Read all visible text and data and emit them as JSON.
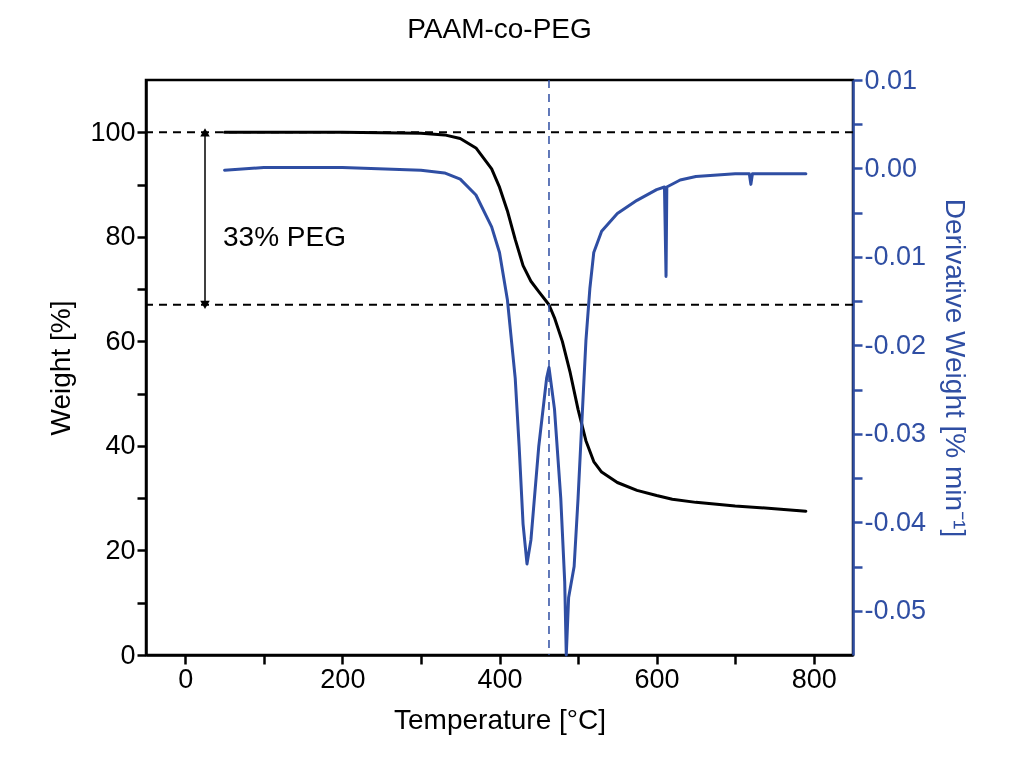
{
  "chart_data": {
    "type": "line",
    "title": "PAAM-co-PEG",
    "xlabel": "Temperature [°C]",
    "ylabel": "Weight [%]",
    "y2label": "Derivative Weight [% min⁻¹]",
    "xlim": [
      -50,
      850
    ],
    "xticks": [
      0,
      {
        "value": 100,
        "label": null
      },
      200,
      {
        "value": 300,
        "label": null
      },
      400,
      {
        "value": 500,
        "label": null
      },
      600,
      {
        "value": 700,
        "label": null
      },
      800
    ],
    "ylim": [
      0,
      110
    ],
    "yticks": [
      0,
      {
        "value": 10,
        "label": null
      },
      20,
      {
        "value": 30,
        "label": null
      },
      40,
      {
        "value": 50,
        "label": null
      },
      60,
      {
        "value": 70,
        "label": null
      },
      80,
      {
        "value": 90,
        "label": null
      },
      100
    ],
    "y2lim": [
      -0.055,
      0.01
    ],
    "y2ticks": [
      -0.05,
      {
        "value": -0.045,
        "label": null
      },
      -0.04,
      {
        "value": -0.035,
        "label": null
      },
      -0.03,
      {
        "value": -0.025,
        "label": null
      },
      -0.02,
      {
        "value": -0.015,
        "label": null
      },
      -0.01,
      {
        "value": -0.005,
        "label": null
      },
      {
        "value": 0,
        "label": "0.00"
      },
      {
        "value": 0.005,
        "label": null
      },
      0.01
    ],
    "grid": false,
    "marker": "none",
    "line_style": "solid",
    "series": [
      {
        "color": "#000000",
        "x": [
          50,
          100,
          200,
          300,
          330,
          350,
          370,
          390,
          400,
          410,
          420,
          430,
          440,
          450,
          463,
          470,
          480,
          490,
          500,
          510,
          520,
          530,
          550,
          575,
          600,
          620,
          650,
          700,
          750,
          790
        ],
        "values": [
          100,
          100,
          100,
          99.8,
          99.5,
          98.8,
          97,
          93,
          89.5,
          85,
          79.5,
          74.5,
          71.5,
          69.5,
          67,
          64.5,
          60,
          54,
          47,
          41,
          37,
          35,
          33,
          31.5,
          30.5,
          29.8,
          29.2,
          28.5,
          28,
          27.5
        ]
      },
      {
        "color": "#2f4ea3",
        "axis": "y2",
        "x": [
          50,
          100,
          200,
          300,
          330,
          350,
          370,
          390,
          400,
          410,
          420,
          425,
          430,
          435,
          440,
          450,
          460,
          463,
          470,
          478,
          483,
          485,
          488,
          495,
          500,
          505,
          510,
          515,
          520,
          530,
          550,
          575,
          600,
          610,
          612,
          613,
          630,
          650,
          700,
          718,
          720,
          722,
          750,
          790
        ],
        "values": [
          -0.0002,
          0.0001,
          0.0001,
          -0.0002,
          -0.0005,
          -0.0012,
          -0.003,
          -0.0066,
          -0.0095,
          -0.0148,
          -0.0237,
          -0.0314,
          -0.0402,
          -0.0447,
          -0.042,
          -0.0314,
          -0.0237,
          -0.0225,
          -0.0272,
          -0.0373,
          -0.0467,
          -0.055,
          -0.0485,
          -0.045,
          -0.0373,
          -0.0284,
          -0.0195,
          -0.0136,
          -0.0095,
          -0.0071,
          -0.0051,
          -0.0036,
          -0.0024,
          -0.0021,
          -0.0122,
          -0.0021,
          -0.0013,
          -0.0009,
          -0.0006,
          -0.0006,
          -0.0018,
          -0.0006,
          -0.0006,
          -0.0006
        ]
      }
    ],
    "ref_lines": [
      {
        "axis": "y",
        "value": 100,
        "color": "#000000",
        "line_style": "dashed"
      },
      {
        "axis": "y",
        "value": 67,
        "color": "#000000",
        "line_style": "dashed"
      },
      {
        "axis": "x",
        "value": 463,
        "color": "#2f4ea3",
        "line_style": "dashed"
      }
    ],
    "annotations": [
      "33% PEG"
    ]
  }
}
